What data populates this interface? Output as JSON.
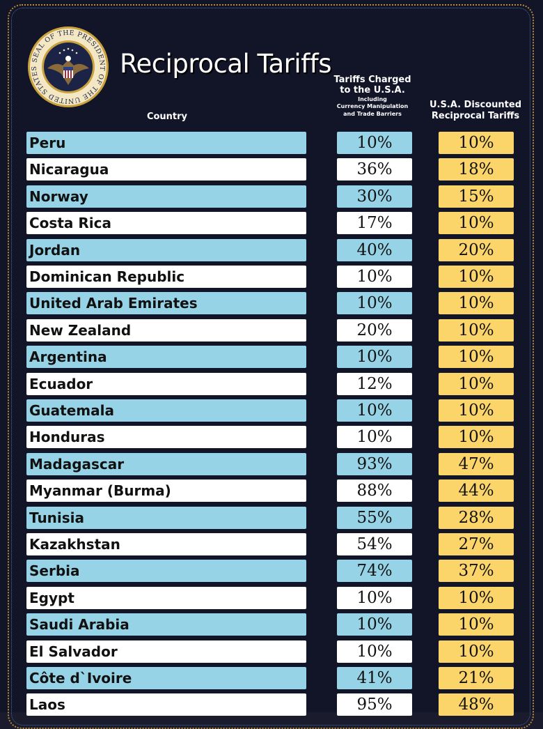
{
  "header": {
    "title": "Reciprocal Tariffs",
    "col_country": "Country",
    "col_charged_main": "Tariffs Charged to the U.S.A.",
    "col_charged_line1": "Tariffs Charged",
    "col_charged_line2": "to the U.S.A.",
    "col_charged_sub1": "Including",
    "col_charged_sub2": "Currency Manipulation",
    "col_charged_sub3": "and Trade Barriers",
    "col_discount_line1": "U.S.A. Discounted",
    "col_discount_line2": "Reciprocal Tariffs"
  },
  "seal": {
    "label": "SEAL OF THE PRESIDENT OF THE UNITED STATES",
    "icon": "presidential-seal-icon"
  },
  "colors": {
    "background": "#121428",
    "row_blue": "#96d3e6",
    "row_white": "#ffffff",
    "discount": "#fbd56a",
    "border_gold": "#b88a3a"
  },
  "chart_data": {
    "type": "table",
    "title": "Reciprocal Tariffs",
    "columns": [
      "Country",
      "Tariffs Charged to the U.S.A. Including Currency Manipulation and Trade Barriers",
      "U.S.A. Discounted Reciprocal Tariffs"
    ],
    "rows": [
      {
        "country": "Peru",
        "charged": "10%",
        "discounted": "10%"
      },
      {
        "country": "Nicaragua",
        "charged": "36%",
        "discounted": "18%"
      },
      {
        "country": "Norway",
        "charged": "30%",
        "discounted": "15%"
      },
      {
        "country": "Costa Rica",
        "charged": "17%",
        "discounted": "10%"
      },
      {
        "country": "Jordan",
        "charged": "40%",
        "discounted": "20%"
      },
      {
        "country": "Dominican Republic",
        "charged": "10%",
        "discounted": "10%"
      },
      {
        "country": "United Arab Emirates",
        "charged": "10%",
        "discounted": "10%"
      },
      {
        "country": "New Zealand",
        "charged": "20%",
        "discounted": "10%"
      },
      {
        "country": "Argentina",
        "charged": "10%",
        "discounted": "10%"
      },
      {
        "country": "Ecuador",
        "charged": "12%",
        "discounted": "10%"
      },
      {
        "country": "Guatemala",
        "charged": "10%",
        "discounted": "10%"
      },
      {
        "country": "Honduras",
        "charged": "10%",
        "discounted": "10%"
      },
      {
        "country": "Madagascar",
        "charged": "93%",
        "discounted": "47%"
      },
      {
        "country": "Myanmar (Burma)",
        "charged": "88%",
        "discounted": "44%"
      },
      {
        "country": "Tunisia",
        "charged": "55%",
        "discounted": "28%"
      },
      {
        "country": "Kazakhstan",
        "charged": "54%",
        "discounted": "27%"
      },
      {
        "country": "Serbia",
        "charged": "74%",
        "discounted": "37%"
      },
      {
        "country": "Egypt",
        "charged": "10%",
        "discounted": "10%"
      },
      {
        "country": "Saudi Arabia",
        "charged": "10%",
        "discounted": "10%"
      },
      {
        "country": "El Salvador",
        "charged": "10%",
        "discounted": "10%"
      },
      {
        "country": "Côte d`Ivoire",
        "charged": "41%",
        "discounted": "21%"
      },
      {
        "country": "Laos",
        "charged": "95%",
        "discounted": "48%"
      }
    ]
  }
}
